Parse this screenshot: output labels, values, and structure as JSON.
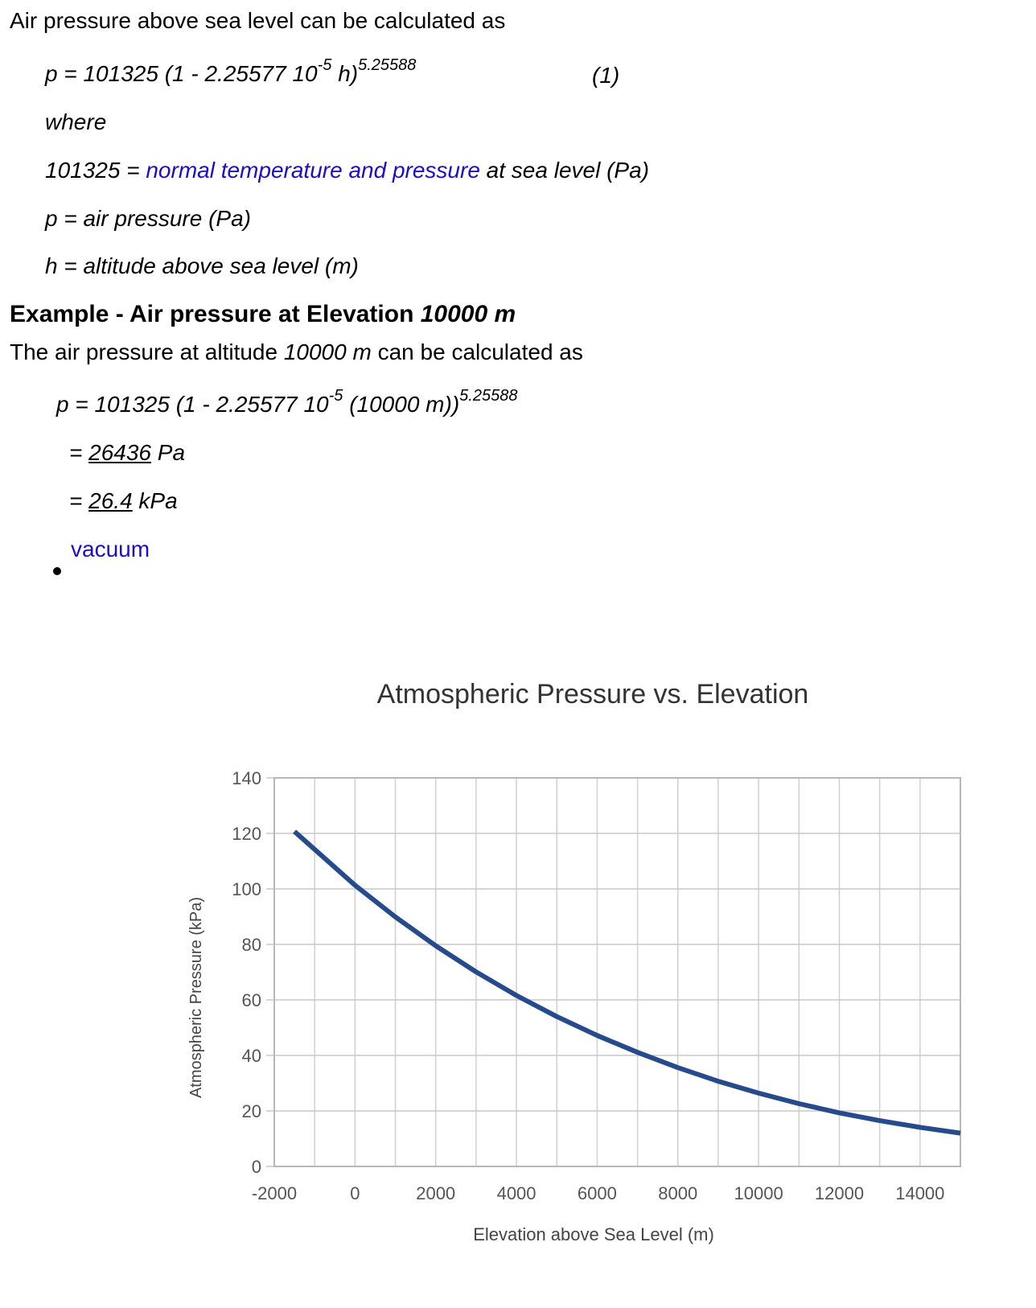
{
  "intro": "Air pressure above sea level can be calculated as",
  "formula": {
    "lead": "p = 101325 (1 - 2.25577 10",
    "exp1": "-5",
    "mid": " h)",
    "exp2": "5.25588",
    "number": "(1)"
  },
  "where": "where",
  "defs": {
    "d1_pre": "101325 = ",
    "d1_link": "normal temperature and pressure",
    "d1_post": " at sea level (Pa)",
    "d2": "p = air pressure (Pa)",
    "d3": "h = altitude above sea level (m)"
  },
  "example": {
    "heading_pre": "Example - Air pressure at Elevation ",
    "heading_val": "10000 m",
    "text_pre": "The air pressure at altitude ",
    "text_val": "10000 m",
    "text_post": " can be calculated as",
    "calc_lead": "p = 101325 (1 - 2.25577 10",
    "calc_exp1": "-5",
    "calc_mid": " (10000 m))",
    "calc_exp2": "5.25588",
    "r1_eq": "= ",
    "r1_val": "26436",
    "r1_unit": " Pa",
    "r2_eq": "= ",
    "r2_val": "26.4",
    "r2_unit": " kPa"
  },
  "links": {
    "vacuum": "vacuum"
  },
  "chart_data": {
    "type": "line",
    "title": "Atmospheric Pressure vs. Elevation",
    "xlabel": "Elevation above Sea Level (m)",
    "ylabel": "Atmospheric Pressure (kPa)",
    "xlim": [
      -2000,
      15000
    ],
    "ylim": [
      0,
      140
    ],
    "xticks": [
      -2000,
      0,
      2000,
      4000,
      6000,
      8000,
      10000,
      12000,
      14000
    ],
    "yticks": [
      0,
      20,
      40,
      60,
      80,
      100,
      120,
      140
    ],
    "grid": true,
    "series": [
      {
        "color": "#264b8c",
        "x": [
          -1500,
          0,
          1000,
          2000,
          3000,
          4000,
          5000,
          6000,
          7000,
          8000,
          9000,
          10000,
          11000,
          12000,
          13000,
          14000,
          15000
        ],
        "y": [
          120.7,
          101.3,
          89.9,
          79.5,
          70.1,
          61.6,
          54.0,
          47.2,
          41.1,
          35.6,
          30.7,
          26.4,
          22.6,
          19.3,
          16.5,
          14.1,
          12.0
        ]
      }
    ]
  }
}
